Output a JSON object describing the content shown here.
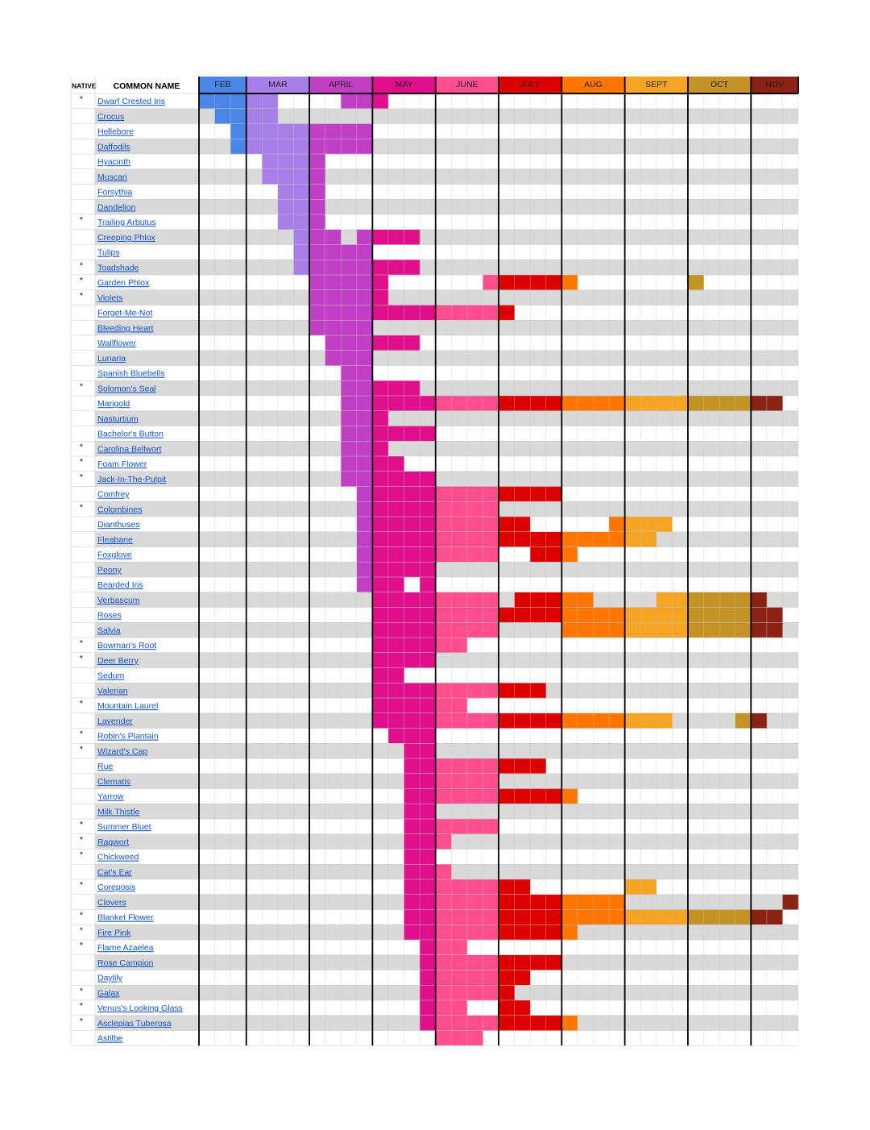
{
  "header": {
    "native": "NATIVE",
    "common_name": "COMMON NAME"
  },
  "months": [
    {
      "name": "FEB",
      "color": "#4a86e8",
      "weeks": 3
    },
    {
      "name": "MAR",
      "color": "#a87ee8",
      "weeks": 4
    },
    {
      "name": "APRIL",
      "color": "#c03fc4",
      "weeks": 4
    },
    {
      "name": "MAY",
      "color": "#e0108c",
      "weeks": 4
    },
    {
      "name": "JUNE",
      "color": "#ff4d8d",
      "weeks": 4
    },
    {
      "name": "JULY",
      "color": "#dd0000",
      "weeks": 4
    },
    {
      "name": "AUG",
      "color": "#ff7700",
      "weeks": 4
    },
    {
      "name": "SEPT",
      "color": "#f6a423",
      "weeks": 4
    },
    {
      "name": "OCT",
      "color": "#c49325",
      "weeks": 4
    },
    {
      "name": "NOV",
      "color": "#8a2316",
      "weeks": 3
    }
  ],
  "rows": [
    {
      "native": "*",
      "name": "Dwarf Crested Iris",
      "bloom": [
        [
          0,
          4
        ],
        [
          9,
          11
        ]
      ]
    },
    {
      "native": null,
      "name": "Crocus",
      "bloom": [
        [
          1,
          4
        ]
      ]
    },
    {
      "native": null,
      "name": "Hellebore",
      "bloom": [
        [
          2,
          10
        ]
      ]
    },
    {
      "native": null,
      "name": "Daffodils",
      "bloom": [
        [
          2,
          10
        ]
      ]
    },
    {
      "native": null,
      "name": "Hyacinth",
      "bloom": [
        [
          4,
          7
        ]
      ]
    },
    {
      "native": null,
      "name": "Muscari",
      "bloom": [
        [
          4,
          7
        ]
      ]
    },
    {
      "native": null,
      "name": "Forsythia",
      "bloom": [
        [
          5,
          7
        ]
      ]
    },
    {
      "native": null,
      "name": "Dandelion",
      "bloom": [
        [
          5,
          7
        ]
      ]
    },
    {
      "native": "*",
      "name": "Trailing Arbutus",
      "bloom": [
        [
          5,
          7
        ]
      ]
    },
    {
      "native": null,
      "name": "Creeping Phlox",
      "bloom": [
        [
          6,
          8
        ],
        [
          10,
          13
        ]
      ]
    },
    {
      "native": null,
      "name": "Tulips",
      "bloom": [
        [
          6,
          10
        ]
      ]
    },
    {
      "native": "*",
      "name": "Toadshade",
      "bloom": [
        [
          6,
          13
        ]
      ]
    },
    {
      "native": "*",
      "name": "Garden Phlox",
      "bloom": [
        [
          7,
          11
        ],
        [
          18,
          23
        ],
        [
          31,
          31
        ]
      ]
    },
    {
      "native": "*",
      "name": "Violets",
      "bloom": [
        [
          7,
          11
        ]
      ]
    },
    {
      "native": null,
      "name": "Forget-Me-Not",
      "bloom": [
        [
          7,
          19
        ]
      ]
    },
    {
      "native": null,
      "name": "Bleeding Heart",
      "bloom": [
        [
          7,
          10
        ]
      ]
    },
    {
      "native": null,
      "name": "Wallflower",
      "bloom": [
        [
          8,
          13
        ]
      ]
    },
    {
      "native": null,
      "name": "Lunaria",
      "bloom": [
        [
          8,
          10
        ]
      ]
    },
    {
      "native": null,
      "name": "Spanish Bluebells",
      "bloom": [
        [
          9,
          10
        ]
      ]
    },
    {
      "native": "*",
      "name": "Solomon's Seal",
      "bloom": [
        [
          9,
          13
        ]
      ]
    },
    {
      "native": null,
      "name": "Marigold",
      "bloom": [
        [
          9,
          36
        ]
      ]
    },
    {
      "native": null,
      "name": "Nasturtium",
      "bloom": [
        [
          9,
          11
        ]
      ]
    },
    {
      "native": null,
      "name": "Bachelor's Button",
      "bloom": [
        [
          9,
          14
        ]
      ]
    },
    {
      "native": "*",
      "name": "Carolina Bellwort",
      "bloom": [
        [
          9,
          11
        ]
      ]
    },
    {
      "native": "*",
      "name": "Foam Flower",
      "bloom": [
        [
          9,
          12
        ]
      ]
    },
    {
      "native": "*",
      "name": "Jack-In-The-Pulpit",
      "bloom": [
        [
          9,
          14
        ]
      ]
    },
    {
      "native": null,
      "name": "Comfrey",
      "bloom": [
        [
          10,
          22
        ]
      ]
    },
    {
      "native": "*",
      "name": "Colombines",
      "bloom": [
        [
          10,
          18
        ]
      ]
    },
    {
      "native": null,
      "name": "Dianthuses",
      "bloom": [
        [
          10,
          20
        ],
        [
          26,
          29
        ]
      ]
    },
    {
      "native": null,
      "name": "Fleabane",
      "bloom": [
        [
          10,
          28
        ]
      ]
    },
    {
      "native": null,
      "name": "Foxglove",
      "bloom": [
        [
          10,
          18
        ],
        [
          21,
          23
        ]
      ]
    },
    {
      "native": null,
      "name": "Peony",
      "bloom": [
        [
          10,
          14
        ]
      ]
    },
    {
      "native": null,
      "name": "Bearded Iris",
      "bloom": [
        [
          10,
          12
        ],
        [
          14,
          14
        ]
      ]
    },
    {
      "native": null,
      "name": "Verbascum",
      "bloom": [
        [
          11,
          18
        ],
        [
          20,
          24
        ],
        [
          29,
          35
        ]
      ]
    },
    {
      "native": null,
      "name": "Roses",
      "bloom": [
        [
          11,
          36
        ]
      ]
    },
    {
      "native": null,
      "name": "Salvia",
      "bloom": [
        [
          11,
          18
        ],
        [
          23,
          36
        ]
      ]
    },
    {
      "native": "*",
      "name": "Bowman's Root",
      "bloom": [
        [
          11,
          16
        ]
      ]
    },
    {
      "native": "*",
      "name": "Deer Berry",
      "bloom": [
        [
          11,
          14
        ]
      ]
    },
    {
      "native": null,
      "name": "Sedum",
      "bloom": [
        [
          11,
          12
        ]
      ]
    },
    {
      "native": null,
      "name": "Valerian",
      "bloom": [
        [
          11,
          21
        ]
      ]
    },
    {
      "native": "*",
      "name": "Mountain Laurel",
      "bloom": [
        [
          11,
          16
        ]
      ]
    },
    {
      "native": null,
      "name": "Lavender",
      "bloom": [
        [
          11,
          29
        ],
        [
          34,
          35
        ]
      ]
    },
    {
      "native": "*",
      "name": "Robin's Plantain",
      "bloom": [
        [
          12,
          14
        ]
      ]
    },
    {
      "native": "*",
      "name": "Wizard's Cap",
      "bloom": [
        [
          13,
          14
        ]
      ]
    },
    {
      "native": null,
      "name": "Rue",
      "bloom": [
        [
          13,
          21
        ]
      ]
    },
    {
      "native": null,
      "name": "Clematis",
      "bloom": [
        [
          13,
          18
        ]
      ]
    },
    {
      "native": null,
      "name": "Yarrow",
      "bloom": [
        [
          13,
          23
        ]
      ]
    },
    {
      "native": null,
      "name": "Milk Thistle",
      "bloom": [
        [
          13,
          14
        ]
      ]
    },
    {
      "native": "*",
      "name": "Summer Bluet",
      "bloom": [
        [
          13,
          18
        ]
      ]
    },
    {
      "native": "*",
      "name": "Ragwort",
      "bloom": [
        [
          13,
          15
        ]
      ]
    },
    {
      "native": "*",
      "name": "Chickweed",
      "bloom": [
        [
          13,
          14
        ]
      ]
    },
    {
      "native": null,
      "name": "Cat's Ear",
      "bloom": [
        [
          13,
          15
        ]
      ]
    },
    {
      "native": "*",
      "name": "Coreposis",
      "bloom": [
        [
          13,
          20
        ],
        [
          27,
          28
        ]
      ]
    },
    {
      "native": null,
      "name": "Clovers",
      "bloom": [
        [
          13,
          26
        ],
        [
          37,
          37
        ]
      ]
    },
    {
      "native": "*",
      "name": "Blanket Flower",
      "bloom": [
        [
          13,
          36
        ]
      ]
    },
    {
      "native": "*",
      "name": "Fire Pink",
      "bloom": [
        [
          13,
          23
        ]
      ]
    },
    {
      "native": "*",
      "name": "Flame Azaelea",
      "bloom": [
        [
          14,
          16
        ]
      ]
    },
    {
      "native": null,
      "name": "Rose Campion",
      "bloom": [
        [
          14,
          22
        ]
      ]
    },
    {
      "native": null,
      "name": "Daylily",
      "bloom": [
        [
          14,
          20
        ]
      ]
    },
    {
      "native": "*",
      "name": "Galax",
      "bloom": [
        [
          14,
          19
        ]
      ]
    },
    {
      "native": "*",
      "name": "Venus's Looking Glass",
      "bloom": [
        [
          14,
          16
        ],
        [
          19,
          20
        ]
      ]
    },
    {
      "native": "*",
      "name": "Asclepias Tuberosa",
      "bloom": [
        [
          14,
          23
        ]
      ]
    },
    {
      "native": null,
      "name": "Astilbe",
      "bloom": [
        [
          15,
          17
        ]
      ]
    }
  ]
}
